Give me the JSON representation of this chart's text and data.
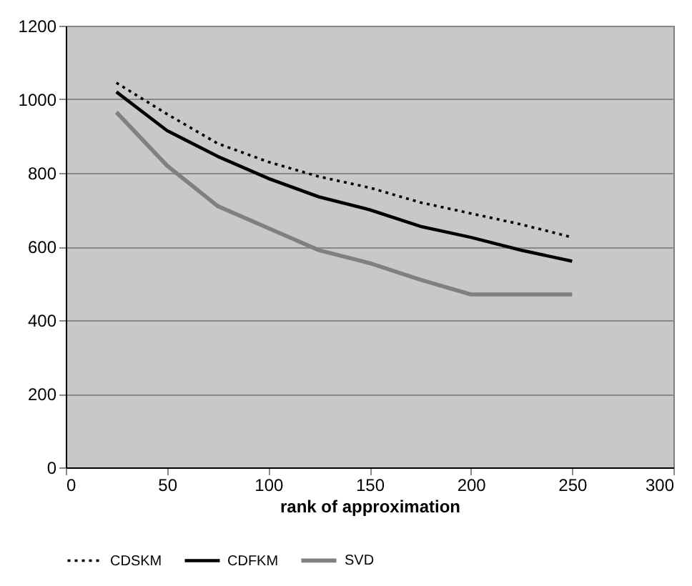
{
  "chart_data": {
    "type": "line",
    "xlabel": "rank of approximation",
    "x": [
      25,
      50,
      75,
      100,
      125,
      150,
      175,
      200,
      225,
      250
    ],
    "series": [
      {
        "name": "CDSKM",
        "color": "#000000",
        "line_style": "dotted",
        "values": [
          1045,
          960,
          880,
          830,
          790,
          760,
          720,
          690,
          660,
          625
        ]
      },
      {
        "name": "CDFKM",
        "color": "#000000",
        "line_style": "solid",
        "values": [
          1020,
          915,
          845,
          785,
          735,
          700,
          655,
          625,
          590,
          560
        ]
      },
      {
        "name": "SVD",
        "color": "#808080",
        "line_style": "solid",
        "values": [
          965,
          820,
          710,
          650,
          590,
          555,
          510,
          470,
          470,
          470
        ]
      }
    ],
    "xlim": [
      0,
      300
    ],
    "xticks": [
      0,
      50,
      100,
      150,
      200,
      250,
      300
    ],
    "ylim": [
      0,
      1200
    ],
    "yticks": [
      0,
      200,
      400,
      600,
      800,
      1000,
      1200
    ],
    "grid": "y",
    "legend": "bottom",
    "marker": "none"
  }
}
